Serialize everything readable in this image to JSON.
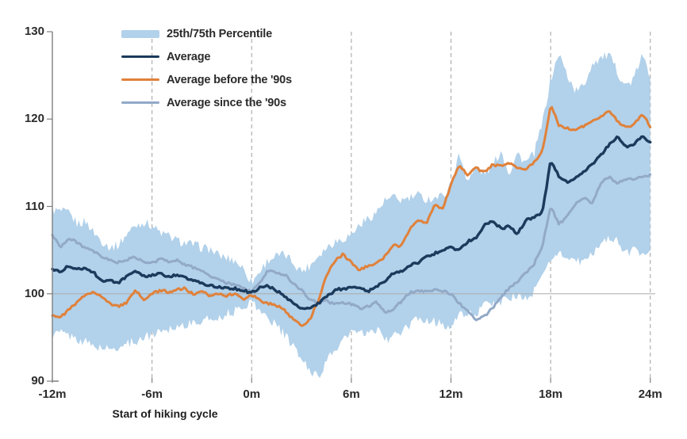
{
  "chart_data": {
    "type": "line",
    "title": "",
    "xlabel": "Start of hiking cycle",
    "ylabel": "",
    "xlim": [
      -12,
      24.3
    ],
    "ylim": [
      90,
      130
    ],
    "grid": "vertical-dashed",
    "legend_position": "top-left-inside",
    "reference_line_y": 100,
    "y_ticks": [
      90,
      100,
      110,
      120,
      130
    ],
    "x_ticks": [
      {
        "v": -12,
        "label": "-12m"
      },
      {
        "v": -6,
        "label": "-6m"
      },
      {
        "v": 0,
        "label": "0m"
      },
      {
        "v": 6,
        "label": "6m"
      },
      {
        "v": 12,
        "label": "12m"
      },
      {
        "v": 18,
        "label": "18m"
      },
      {
        "v": 24,
        "label": "24m"
      }
    ],
    "x": [
      -12,
      -11.5,
      -11,
      -10.5,
      -10,
      -9.5,
      -9,
      -8.5,
      -8,
      -7.5,
      -7,
      -6.5,
      -6,
      -5.5,
      -5,
      -4.5,
      -4,
      -3.5,
      -3,
      -2.5,
      -2,
      -1.5,
      -1,
      -0.5,
      0,
      0.5,
      1,
      1.5,
      2,
      2.5,
      3,
      3.5,
      4,
      4.5,
      5,
      5.5,
      6,
      6.5,
      7,
      7.5,
      8,
      8.5,
      9,
      9.5,
      10,
      10.5,
      11,
      11.5,
      12,
      12.5,
      13,
      13.5,
      14,
      14.5,
      15,
      15.5,
      16,
      16.5,
      17,
      17.5,
      18,
      18.5,
      19,
      19.5,
      20,
      20.5,
      21,
      21.5,
      22,
      22.5,
      23,
      23.5,
      24
    ],
    "band": {
      "name": "25th/75th Percentile",
      "color": "#b2d1ea",
      "upper": [
        109.6,
        109.4,
        109.2,
        108.0,
        108.3,
        107.0,
        106.0,
        105.3,
        105.6,
        106.9,
        107.8,
        108.2,
        107.8,
        107.0,
        106.6,
        106.1,
        105.8,
        105.6,
        105.3,
        105.1,
        104.4,
        104.1,
        103.8,
        102.9,
        101.3,
        102.6,
        103.9,
        104.3,
        104.5,
        103.6,
        102.6,
        103.2,
        104.4,
        105.3,
        106.0,
        106.3,
        106.8,
        107.9,
        108.6,
        109.3,
        110.6,
        111.0,
        110.7,
        110.9,
        111.3,
        110.8,
        111.0,
        111.2,
        112.5,
        116.0,
        113.0,
        114.3,
        113.8,
        114.6,
        116.4,
        113.8,
        116.1,
        115.0,
        116.0,
        119.5,
        124.5,
        127.5,
        125.0,
        123.2,
        123.8,
        126.4,
        127.0,
        127.3,
        125.5,
        123.8,
        124.5,
        127.3,
        124.9
      ],
      "lower": [
        95.3,
        95.6,
        95.2,
        94.8,
        94.5,
        94.0,
        93.8,
        93.6,
        93.9,
        94.3,
        94.6,
        95.0,
        95.3,
        95.8,
        96.0,
        96.3,
        96.5,
        96.6,
        96.9,
        97.1,
        97.3,
        97.7,
        98.0,
        98.6,
        99.2,
        98.0,
        97.2,
        96.4,
        95.2,
        94.0,
        92.5,
        91.2,
        90.6,
        92.2,
        93.6,
        94.6,
        95.7,
        95.4,
        95.3,
        96.0,
        94.8,
        95.0,
        95.6,
        96.3,
        97.2,
        97.0,
        96.8,
        96.5,
        96.2,
        97.5,
        97.8,
        97.6,
        98.6,
        98.9,
        99.1,
        99.6,
        99.7,
        99.4,
        100.2,
        102.0,
        104.1,
        104.6,
        104.3,
        103.7,
        103.6,
        104.5,
        105.8,
        106.5,
        106.0,
        104.7,
        105.0,
        104.6,
        105.3
      ]
    },
    "series": [
      {
        "name": "Average since the '90s",
        "color": "#92a9c7",
        "width": 3,
        "values": [
          106.7,
          105.4,
          106.3,
          105.9,
          105.2,
          104.8,
          104.2,
          103.8,
          103.6,
          103.9,
          104.2,
          103.6,
          103.5,
          104.0,
          103.7,
          103.9,
          103.3,
          103.0,
          102.7,
          102.0,
          101.6,
          101.2,
          101.0,
          100.7,
          100.2,
          101.3,
          102.7,
          102.4,
          102.2,
          101.2,
          100.4,
          99.4,
          98.9,
          99.2,
          98.8,
          99.0,
          98.8,
          98.3,
          98.6,
          99.0,
          97.9,
          98.2,
          99.1,
          100.1,
          100.4,
          100.3,
          100.5,
          100.3,
          100.0,
          98.9,
          98.0,
          97.1,
          97.4,
          98.4,
          99.5,
          100.7,
          101.4,
          102.4,
          103.4,
          105.5,
          110.0,
          108.0,
          108.8,
          110.2,
          111.0,
          110.3,
          112.6,
          113.4,
          112.7,
          113.0,
          113.2,
          113.4,
          113.6
        ]
      },
      {
        "name": "Average before the '90s",
        "color": "#e0813a",
        "width": 3,
        "values": [
          97.6,
          97.3,
          98.2,
          99.0,
          99.9,
          100.3,
          99.6,
          98.8,
          98.6,
          99.0,
          100.4,
          99.3,
          100.0,
          100.4,
          100.2,
          100.5,
          100.6,
          99.9,
          100.2,
          99.8,
          100.1,
          99.8,
          100.0,
          99.4,
          99.9,
          99.2,
          98.9,
          98.7,
          98.1,
          97.0,
          96.4,
          97.0,
          99.2,
          102.0,
          103.8,
          104.5,
          103.6,
          102.7,
          103.2,
          103.4,
          104.2,
          105.6,
          105.4,
          107.4,
          108.5,
          108.0,
          110.2,
          109.6,
          112.6,
          114.8,
          113.5,
          114.4,
          113.9,
          114.8,
          114.6,
          115.0,
          114.5,
          114.2,
          115.0,
          116.2,
          121.6,
          119.3,
          119.0,
          118.7,
          119.2,
          119.7,
          120.3,
          121.0,
          119.8,
          119.0,
          119.3,
          120.6,
          119.2
        ]
      },
      {
        "name": "Average",
        "color": "#1b3a5c",
        "width": 3.4,
        "values": [
          102.8,
          102.6,
          103.2,
          102.8,
          103.0,
          102.4,
          101.4,
          101.5,
          101.3,
          102.0,
          102.5,
          102.0,
          102.1,
          102.3,
          101.9,
          102.2,
          101.8,
          101.5,
          101.2,
          100.9,
          100.8,
          100.6,
          100.6,
          100.4,
          100.1,
          100.7,
          100.9,
          100.4,
          99.6,
          98.9,
          98.2,
          98.3,
          98.9,
          99.6,
          100.4,
          100.6,
          100.7,
          100.6,
          100.3,
          100.8,
          101.4,
          102.3,
          102.5,
          103.3,
          103.5,
          104.2,
          104.6,
          105.0,
          105.4,
          104.9,
          106.0,
          106.4,
          107.8,
          108.3,
          107.5,
          107.7,
          106.9,
          108.4,
          108.7,
          109.2,
          115.2,
          113.5,
          112.8,
          113.2,
          114.0,
          114.8,
          115.8,
          117.0,
          118.0,
          116.8,
          117.1,
          118.0,
          117.3
        ]
      }
    ],
    "colors": {
      "axis": "#7f7f7f",
      "grid_dash": "#a8a8a8",
      "reference_line": "#ababab",
      "text": "#2b2b2b"
    },
    "render_jitter": {
      "band": 0.55,
      "lines": 0.14
    }
  },
  "legend": {
    "order_note": "band, average, before-90s, since-90s"
  }
}
